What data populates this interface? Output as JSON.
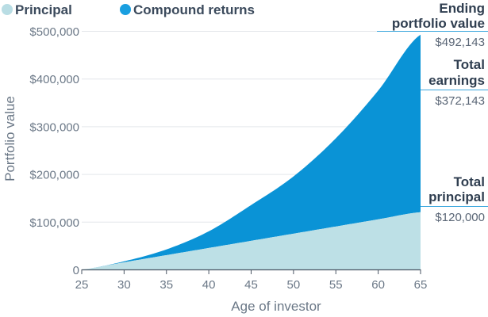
{
  "colors": {
    "principal": "#bde0e6",
    "principal_legend": "#b9dde4",
    "compound": "#0a93d6",
    "compound_legend": "#1a9fe0",
    "grid": "#e3e6ea",
    "axis": "#4a5563",
    "callout_line": "#3aa6dd"
  },
  "legend": {
    "principal": "Principal",
    "compound": "Compound returns"
  },
  "annotations": {
    "ending": {
      "line1": "Ending",
      "line2": "portfolio value",
      "value": "$492,143"
    },
    "earnings": {
      "line1": "Total",
      "line2": "earnings",
      "value": "$372,143"
    },
    "principal": {
      "line1": "Total",
      "line2": "principal",
      "value": "$120,000"
    }
  },
  "chart_data": {
    "type": "area",
    "xlabel": "Age of investor",
    "ylabel": "Portfolio value",
    "xlim": [
      25,
      65
    ],
    "ylim": [
      0,
      500000
    ],
    "x_ticks": [
      "25",
      "30",
      "35",
      "40",
      "45",
      "50",
      "55",
      "60",
      "65"
    ],
    "y_ticks": [
      "0",
      "$100,000",
      "$200,000",
      "$300,000",
      "$400,000",
      "$500,000"
    ],
    "grid": true,
    "legend_position": "top-left",
    "series": [
      {
        "name": "Principal",
        "x": [
          25,
          30,
          35,
          40,
          45,
          50,
          55,
          60,
          65
        ],
        "values": [
          0,
          15000,
          30000,
          45000,
          60000,
          75000,
          90000,
          105000,
          120000
        ]
      },
      {
        "name": "Compound returns",
        "x": [
          25,
          30,
          35,
          40,
          45,
          50,
          55,
          60,
          65
        ],
        "values": [
          0,
          17000,
          42000,
          80000,
          135000,
          195000,
          275000,
          375000,
          492143
        ]
      }
    ]
  }
}
